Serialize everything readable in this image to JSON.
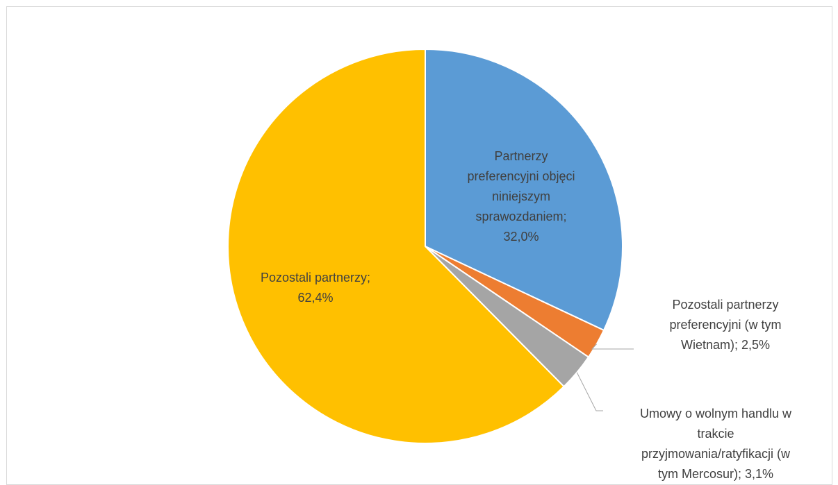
{
  "chart_data": {
    "type": "pie",
    "categories": [
      "Partnerzy preferencyjni objęci niniejszym sprawozdaniem",
      "Pozostali partnerzy preferencyjni (w tym Wietnam)",
      "Umowy o wolnym handlu w trakcie przyjmowania/ratyfikacji (w tym Mercosur)",
      "Pozostali partnerzy"
    ],
    "values": [
      32.0,
      2.5,
      3.1,
      62.4
    ],
    "unit": "%",
    "colors": [
      "#5b9bd5",
      "#ed7d31",
      "#a5a5a5",
      "#ffc000"
    ],
    "labels": [
      "Partnerzy\npreferencyjni objęci\nniniejszym\nsprawozdaniem;\n32,0%",
      "Pozostali partnerzy\npreferencyjni (w tym\nWietnam); 2,5%",
      "Umowy o wolnym handlu w\ntrakcie\nprzyjmowania/ratyfikacji (w\ntym Mercosur); 3,1%",
      "Pozostali partnerzy;\n62,4%"
    ],
    "start_angle_deg": 0,
    "direction": "clockwise",
    "legend": "none"
  }
}
